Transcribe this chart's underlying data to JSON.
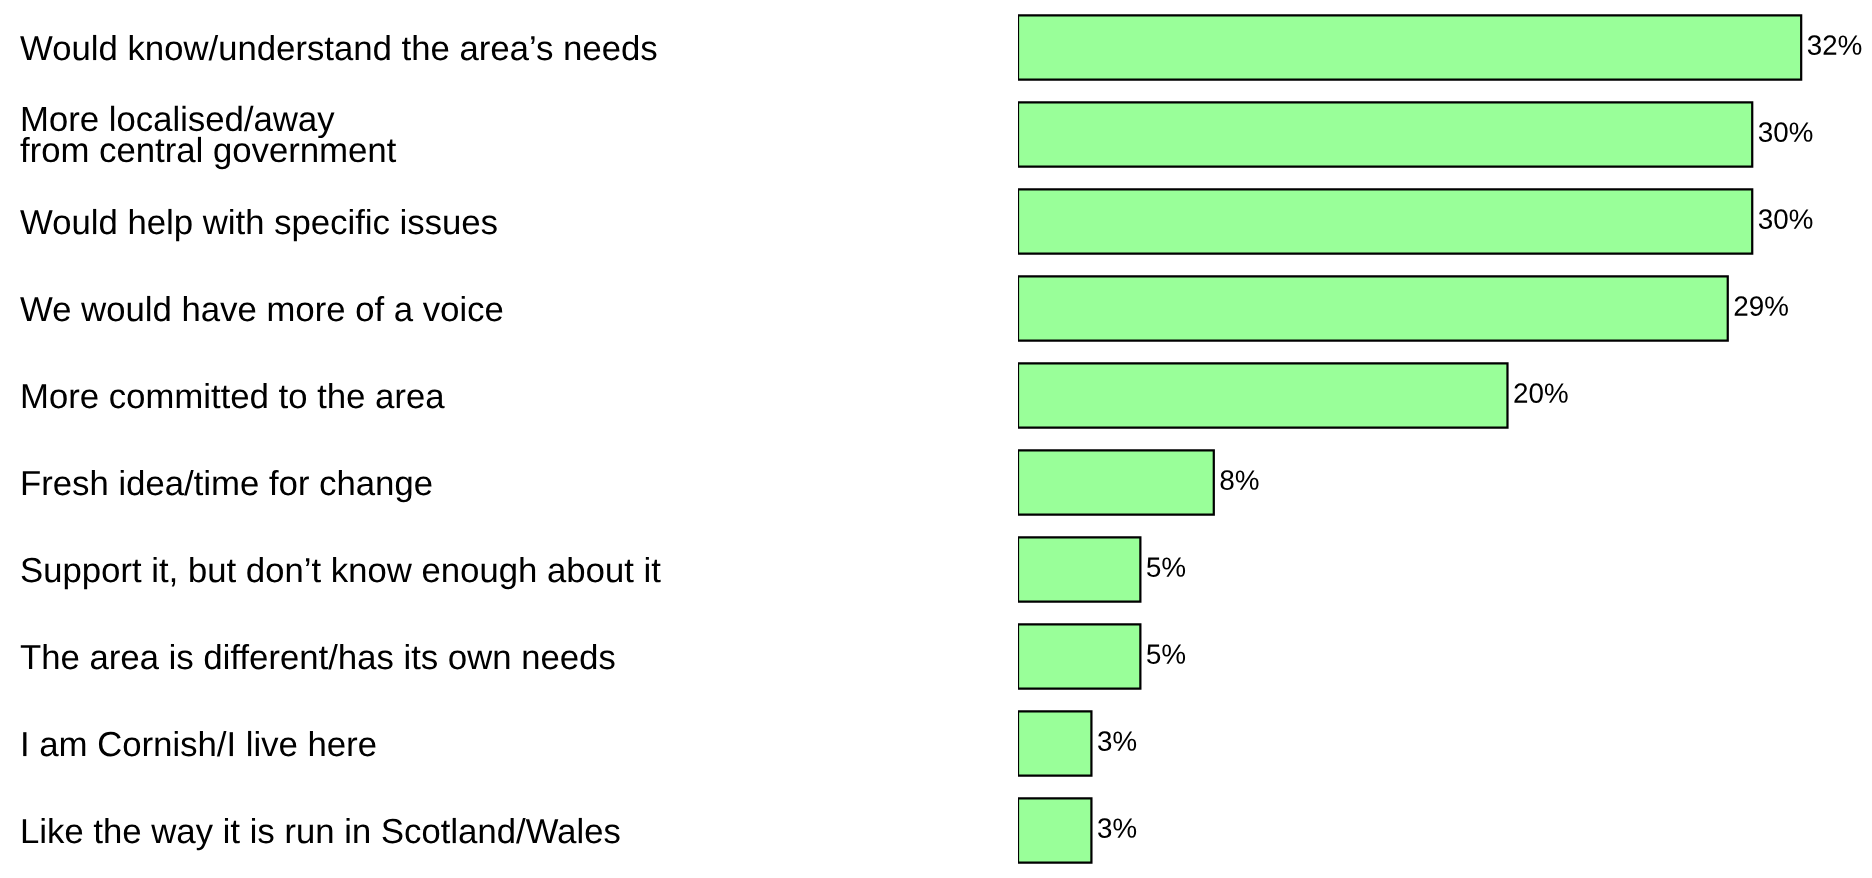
{
  "chart_data": {
    "type": "bar",
    "orientation": "horizontal",
    "categories": [
      "Would know/understand the area’s needs",
      "More localised/away\nfrom central government",
      "Would help with specific issues",
      "We would have more of a voice",
      "More committed to the area",
      "Fresh idea/time for change",
      "Support it, but don’t know enough about it",
      "The area is different/has its own needs",
      "I am Cornish/I live here",
      "Like the way it is run in Scotland/Wales"
    ],
    "values": [
      32,
      30,
      30,
      29,
      20,
      8,
      5,
      5,
      3,
      3
    ],
    "value_labels": [
      "32%",
      "30%",
      "30%",
      "29%",
      "20%",
      "8%",
      "5%",
      "5%",
      "3%",
      "3%"
    ],
    "color": "#99ff99",
    "grid": false,
    "legend": false
  }
}
